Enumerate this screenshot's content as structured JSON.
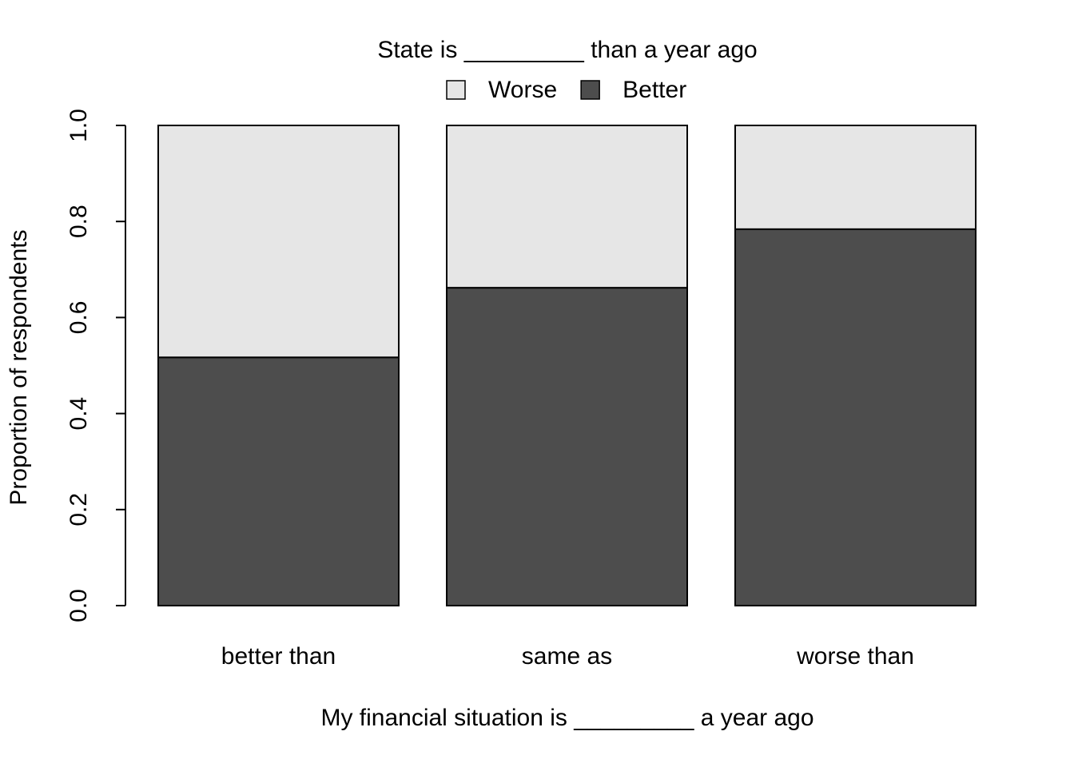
{
  "chart_data": {
    "type": "stacked_bar",
    "legend_title": "State is _________ than a year ago",
    "xlabel": "My financial situation is _________ a year ago",
    "ylabel": "Proportion of respondents",
    "categories": [
      "better than",
      "same as",
      "worse than"
    ],
    "series": [
      {
        "name": "Better",
        "color": "#4d4d4d",
        "values": [
          0.517,
          0.662,
          0.784
        ]
      },
      {
        "name": "Worse",
        "color": "#e6e6e6",
        "values": [
          0.483,
          0.338,
          0.216
        ]
      }
    ],
    "ylim": [
      0,
      1
    ],
    "yticks": [
      {
        "value": 0,
        "label": "0.0"
      },
      0.2,
      0.4,
      0.6,
      0.8,
      {
        "value": 1,
        "label": "1.0"
      }
    ],
    "legend": "top"
  }
}
